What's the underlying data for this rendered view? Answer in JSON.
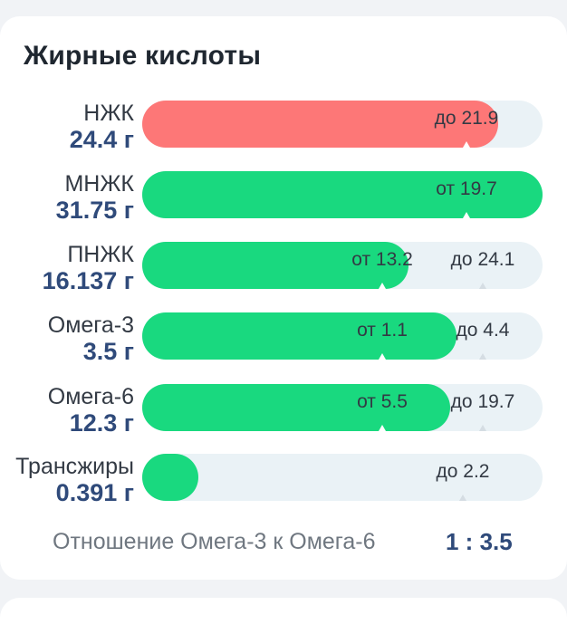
{
  "section": {
    "title": "Жирные кислоты"
  },
  "rows": [
    {
      "label": "НЖК",
      "amount": "24.4 г",
      "fill_fraction": 0.89,
      "color": "#fd7777",
      "markers": [
        {
          "text": "до 21.9",
          "fraction": 0.81
        }
      ]
    },
    {
      "label": "МНЖК",
      "amount": "31.75 г",
      "fill_fraction": 1.0,
      "color": "#19d97f",
      "markers": [
        {
          "text": "от 19.7",
          "fraction": 0.81
        }
      ]
    },
    {
      "label": "ПНЖК",
      "amount": "16.137 г",
      "fill_fraction": 0.665,
      "color": "#19d97f",
      "markers": [
        {
          "text": "от 13.2",
          "fraction": 0.6
        },
        {
          "text": "до 24.1",
          "fraction": 0.85
        }
      ]
    },
    {
      "label": "Омега-3",
      "amount": "3.5 г",
      "fill_fraction": 0.785,
      "color": "#19d97f",
      "markers": [
        {
          "text": "от 1.1",
          "fraction": 0.6
        },
        {
          "text": "до 4.4",
          "fraction": 0.85
        }
      ]
    },
    {
      "label": "Омега-6",
      "amount": "12.3 г",
      "fill_fraction": 0.77,
      "color": "#19d97f",
      "markers": [
        {
          "text": "от 5.5",
          "fraction": 0.6
        },
        {
          "text": "до 19.7",
          "fraction": 0.85
        }
      ]
    },
    {
      "label": "Трансжиры",
      "amount": "0.391 г",
      "fill_fraction": 0.14,
      "color": "#19d97f",
      "markers": [
        {
          "text": "до 2.2",
          "fraction": 0.8
        }
      ]
    }
  ],
  "ratio": {
    "label": "Отношение Омега-3 к Омега-6",
    "value": "1 : 3.5"
  },
  "colors": {
    "accent_blue": "#2f4a7a",
    "track": "#eaf2f6"
  }
}
